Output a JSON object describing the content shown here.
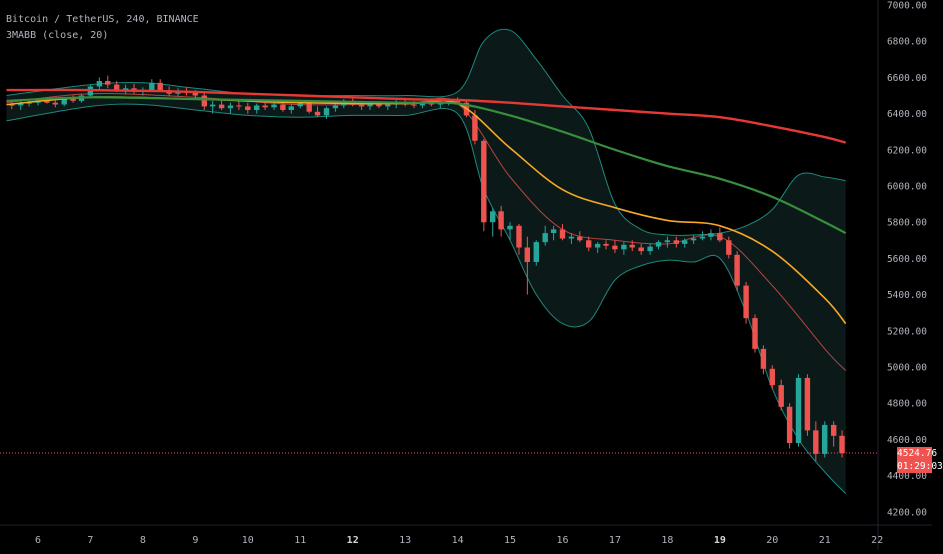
{
  "header": {
    "symbol_line": "Bitcoin / TetherUS, 240, BINANCE",
    "indicator_line": "3MABB (close, 20)"
  },
  "price_scale": {
    "labels": [
      "7000.00",
      "6800.00",
      "6600.00",
      "6400.00",
      "6200.00",
      "6000.00",
      "5800.00",
      "5600.00",
      "5400.00",
      "5200.00",
      "5000.00",
      "4800.00",
      "4600.00",
      "4400.00",
      "4200.00"
    ]
  },
  "current_price": {
    "label": "4524.76",
    "countdown": "01:29:03",
    "color": "#ef5350"
  },
  "time_axis": {
    "labels": [
      "6",
      "7",
      "8",
      "9",
      "10",
      "11",
      "12",
      "13",
      "14",
      "15",
      "16",
      "17",
      "18",
      "19",
      "20",
      "21",
      "22"
    ],
    "bold": [
      "12",
      "19"
    ]
  },
  "colors": {
    "up": "#26a69a",
    "down": "#ef5350",
    "background": "#000000",
    "band_edge": "#26a69a",
    "band_fill": "#0c1d1c",
    "ma_red": "#e53935",
    "ma_green": "#388e3c",
    "ma_orange": "#f9a825",
    "ma_pink": "#ef5350"
  },
  "chart_data": {
    "type": "candlestick",
    "title": "Bitcoin / TetherUS, 240, BINANCE",
    "indicator": "3MABB (close, 20)",
    "ylim": [
      4160,
      7000
    ],
    "x_days": [
      5.4,
      22.3
    ],
    "x_ticks": [
      6,
      7,
      8,
      9,
      10,
      11,
      12,
      13,
      14,
      15,
      16,
      17,
      18,
      19,
      20,
      21,
      22
    ],
    "y_ticks": [
      7000,
      6800,
      6600,
      6400,
      6200,
      6000,
      5800,
      5600,
      5400,
      5200,
      5000,
      4800,
      4600,
      4400,
      4200
    ],
    "bar_hours": 4,
    "candles_note": "each candle: [day_position, open, high, low, close]",
    "candles": [
      [
        5.5,
        6450,
        6475,
        6425,
        6445
      ],
      [
        5.67,
        6445,
        6470,
        6420,
        6455
      ],
      [
        5.83,
        6455,
        6480,
        6440,
        6460
      ],
      [
        6.0,
        6460,
        6485,
        6445,
        6470
      ],
      [
        6.17,
        6470,
        6490,
        6455,
        6460
      ],
      [
        6.33,
        6460,
        6475,
        6435,
        6450
      ],
      [
        6.5,
        6450,
        6490,
        6440,
        6480
      ],
      [
        6.67,
        6480,
        6500,
        6460,
        6470
      ],
      [
        6.83,
        6470,
        6510,
        6460,
        6500
      ],
      [
        7.0,
        6500,
        6560,
        6490,
        6550
      ],
      [
        7.17,
        6550,
        6600,
        6530,
        6580
      ],
      [
        7.33,
        6580,
        6610,
        6540,
        6560
      ],
      [
        7.5,
        6560,
        6580,
        6520,
        6530
      ],
      [
        7.67,
        6530,
        6560,
        6510,
        6540
      ],
      [
        7.83,
        6540,
        6565,
        6510,
        6520
      ],
      [
        8.0,
        6520,
        6545,
        6500,
        6530
      ],
      [
        8.17,
        6530,
        6590,
        6520,
        6570
      ],
      [
        8.33,
        6570,
        6590,
        6520,
        6530
      ],
      [
        8.5,
        6530,
        6550,
        6495,
        6510
      ],
      [
        8.67,
        6510,
        6540,
        6495,
        6525
      ],
      [
        8.83,
        6525,
        6545,
        6500,
        6515
      ],
      [
        9.0,
        6515,
        6530,
        6480,
        6500
      ],
      [
        9.17,
        6500,
        6520,
        6420,
        6440
      ],
      [
        9.33,
        6440,
        6470,
        6400,
        6450
      ],
      [
        9.5,
        6450,
        6480,
        6420,
        6430
      ],
      [
        9.67,
        6430,
        6460,
        6400,
        6445
      ],
      [
        9.83,
        6445,
        6470,
        6420,
        6440
      ],
      [
        10.0,
        6440,
        6460,
        6400,
        6420
      ],
      [
        10.17,
        6420,
        6455,
        6400,
        6445
      ],
      [
        10.33,
        6445,
        6470,
        6420,
        6435
      ],
      [
        10.5,
        6435,
        6465,
        6420,
        6450
      ],
      [
        10.67,
        6450,
        6470,
        6410,
        6420
      ],
      [
        10.83,
        6420,
        6450,
        6400,
        6440
      ],
      [
        11.0,
        6440,
        6475,
        6430,
        6455
      ],
      [
        11.17,
        6455,
        6470,
        6400,
        6410
      ],
      [
        11.33,
        6410,
        6440,
        6380,
        6390
      ],
      [
        11.5,
        6390,
        6440,
        6370,
        6430
      ],
      [
        11.67,
        6430,
        6460,
        6410,
        6445
      ],
      [
        11.83,
        6445,
        6480,
        6430,
        6470
      ],
      [
        12.0,
        6470,
        6490,
        6440,
        6450
      ],
      [
        12.17,
        6450,
        6470,
        6420,
        6440
      ],
      [
        12.33,
        6440,
        6465,
        6420,
        6455
      ],
      [
        12.5,
        6455,
        6470,
        6430,
        6440
      ],
      [
        12.67,
        6440,
        6460,
        6420,
        6450
      ],
      [
        12.83,
        6450,
        6475,
        6430,
        6460
      ],
      [
        13.0,
        6460,
        6480,
        6440,
        6450
      ],
      [
        13.17,
        6450,
        6470,
        6430,
        6445
      ],
      [
        13.33,
        6445,
        6470,
        6430,
        6460
      ],
      [
        13.5,
        6460,
        6480,
        6440,
        6450
      ],
      [
        13.67,
        6450,
        6470,
        6430,
        6465
      ],
      [
        13.83,
        6465,
        6485,
        6445,
        6470
      ],
      [
        14.0,
        6470,
        6490,
        6450,
        6460
      ],
      [
        14.17,
        6460,
        6470,
        6380,
        6390
      ],
      [
        14.33,
        6390,
        6420,
        6230,
        6250
      ],
      [
        14.5,
        6250,
        6260,
        5750,
        5800
      ],
      [
        14.67,
        5800,
        5880,
        5720,
        5860
      ],
      [
        14.83,
        5860,
        5890,
        5720,
        5760
      ],
      [
        15.0,
        5760,
        5800,
        5700,
        5780
      ],
      [
        15.17,
        5780,
        5790,
        5620,
        5660
      ],
      [
        15.33,
        5660,
        5720,
        5400,
        5580
      ],
      [
        15.5,
        5580,
        5700,
        5560,
        5690
      ],
      [
        15.67,
        5690,
        5780,
        5670,
        5740
      ],
      [
        15.83,
        5740,
        5780,
        5700,
        5760
      ],
      [
        16.0,
        5760,
        5790,
        5700,
        5710
      ],
      [
        16.17,
        5710,
        5740,
        5680,
        5720
      ],
      [
        16.33,
        5720,
        5750,
        5690,
        5700
      ],
      [
        16.5,
        5700,
        5720,
        5640,
        5660
      ],
      [
        16.67,
        5660,
        5690,
        5630,
        5680
      ],
      [
        16.83,
        5680,
        5700,
        5650,
        5670
      ],
      [
        17.0,
        5670,
        5700,
        5630,
        5650
      ],
      [
        17.17,
        5650,
        5690,
        5620,
        5675
      ],
      [
        17.33,
        5675,
        5700,
        5640,
        5660
      ],
      [
        17.5,
        5660,
        5680,
        5620,
        5640
      ],
      [
        17.67,
        5640,
        5680,
        5620,
        5665
      ],
      [
        17.83,
        5665,
        5700,
        5650,
        5690
      ],
      [
        18.0,
        5690,
        5720,
        5660,
        5700
      ],
      [
        18.17,
        5700,
        5720,
        5660,
        5680
      ],
      [
        18.33,
        5680,
        5710,
        5660,
        5700
      ],
      [
        18.5,
        5700,
        5730,
        5680,
        5710
      ],
      [
        18.67,
        5710,
        5750,
        5700,
        5720
      ],
      [
        18.83,
        5720,
        5760,
        5700,
        5740
      ],
      [
        19.0,
        5740,
        5770,
        5690,
        5700
      ],
      [
        19.17,
        5700,
        5720,
        5600,
        5620
      ],
      [
        19.33,
        5620,
        5640,
        5420,
        5450
      ],
      [
        19.5,
        5450,
        5470,
        5240,
        5270
      ],
      [
        19.67,
        5270,
        5290,
        5080,
        5100
      ],
      [
        19.83,
        5100,
        5120,
        4960,
        4990
      ],
      [
        20.0,
        4990,
        5010,
        4880,
        4900
      ],
      [
        20.17,
        4900,
        4930,
        4760,
        4780
      ],
      [
        20.33,
        4780,
        4800,
        4550,
        4580
      ],
      [
        20.5,
        4580,
        4960,
        4560,
        4940
      ],
      [
        20.67,
        4940,
        4960,
        4620,
        4650
      ],
      [
        20.83,
        4650,
        4700,
        4480,
        4520
      ],
      [
        21.0,
        4520,
        4700,
        4500,
        4680
      ],
      [
        21.17,
        4680,
        4700,
        4560,
        4620
      ],
      [
        21.33,
        4620,
        4650,
        4500,
        4525
      ]
    ],
    "series": [
      {
        "role": "ma_long",
        "x": [
          5.4,
          7,
          9,
          11,
          13,
          14,
          15,
          16,
          17,
          18,
          19,
          20,
          21,
          21.4
        ],
        "y": [
          6530,
          6530,
          6520,
          6500,
          6480,
          6475,
          6460,
          6440,
          6420,
          6400,
          6380,
          6330,
          6270,
          6240
        ]
      },
      {
        "role": "ma_mid",
        "x": [
          5.4,
          7,
          9,
          11,
          13,
          14,
          15,
          16,
          17,
          18,
          19,
          20,
          21,
          21.4
        ],
        "y": [
          6470,
          6490,
          6480,
          6470,
          6460,
          6455,
          6390,
          6300,
          6200,
          6110,
          6040,
          5940,
          5800,
          5740
        ]
      },
      {
        "role": "ma_short",
        "x": [
          5.4,
          7,
          9,
          11,
          13,
          14,
          15,
          16,
          17,
          18,
          19,
          20,
          21,
          21.4
        ],
        "y": [
          6450,
          6490,
          6480,
          6460,
          6455,
          6455,
          6210,
          5980,
          5880,
          5810,
          5780,
          5640,
          5380,
          5240
        ]
      },
      {
        "role": "bb_basis",
        "x": [
          5.4,
          7,
          9,
          11,
          13,
          14,
          15,
          16,
          17,
          18,
          19,
          20,
          21,
          21.4
        ],
        "y": [
          6460,
          6510,
          6490,
          6450,
          6455,
          6455,
          6050,
          5760,
          5700,
          5680,
          5720,
          5450,
          5100,
          4980
        ]
      },
      {
        "role": "bb_upper",
        "x": [
          5.4,
          7,
          8,
          9,
          10,
          11,
          12,
          13,
          14,
          14.5,
          15,
          15.5,
          16,
          16.5,
          17,
          17.5,
          18,
          18.5,
          19,
          19.5,
          20,
          20.5,
          21,
          21.4
        ],
        "y": [
          6500,
          6560,
          6570,
          6540,
          6510,
          6500,
          6500,
          6500,
          6520,
          6800,
          6860,
          6700,
          6500,
          6320,
          5900,
          5760,
          5730,
          5730,
          5740,
          5780,
          5870,
          6060,
          6050,
          6030
        ]
      },
      {
        "role": "bb_lower",
        "x": [
          5.4,
          7,
          8,
          9,
          10,
          11,
          12,
          13,
          14,
          14.5,
          15,
          15.5,
          16,
          16.5,
          17,
          17.5,
          18,
          18.5,
          19,
          19.5,
          20,
          20.5,
          21,
          21.4
        ],
        "y": [
          6360,
          6440,
          6450,
          6420,
          6390,
          6380,
          6390,
          6390,
          6400,
          5980,
          5700,
          5400,
          5240,
          5250,
          5480,
          5560,
          5590,
          5580,
          5600,
          5300,
          4880,
          4600,
          4420,
          4300
        ]
      }
    ],
    "current_price": 4524.76
  }
}
